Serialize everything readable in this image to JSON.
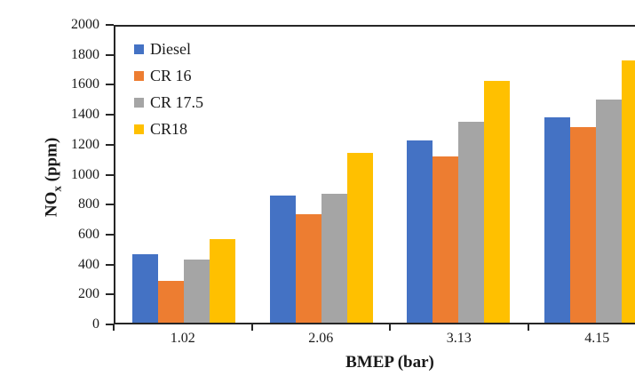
{
  "chart_data": {
    "type": "bar",
    "categories": [
      "1.02",
      "2.06",
      "3.13",
      "4.15"
    ],
    "series": [
      {
        "name": "Diesel",
        "color": "#4472C4",
        "values": [
          465,
          860,
          1230,
          1390
        ]
      },
      {
        "name": "CR 16",
        "color": "#ED7D31",
        "values": [
          285,
          730,
          1125,
          1320
        ]
      },
      {
        "name": "CR 17.5",
        "color": "#A5A5A5",
        "values": [
          425,
          870,
          1360,
          1510
        ]
      },
      {
        "name": "CR18",
        "color": "#FFC000",
        "values": [
          565,
          1145,
          1635,
          1770
        ]
      }
    ],
    "title": "",
    "xlabel": "BMEP (bar)",
    "ylabel": "NOx (ppm)",
    "ylabel_parts": {
      "base": "NO",
      "sub": "x",
      "rest": " (ppm)"
    },
    "ylim": [
      0,
      2000
    ],
    "yticks": [
      0,
      200,
      400,
      600,
      800,
      1000,
      1200,
      1400,
      1600,
      1800,
      2000
    ],
    "grid": false,
    "legend_position": "top-left-inside",
    "axis_color": "#262626",
    "text_color": "#1a1a1a"
  }
}
